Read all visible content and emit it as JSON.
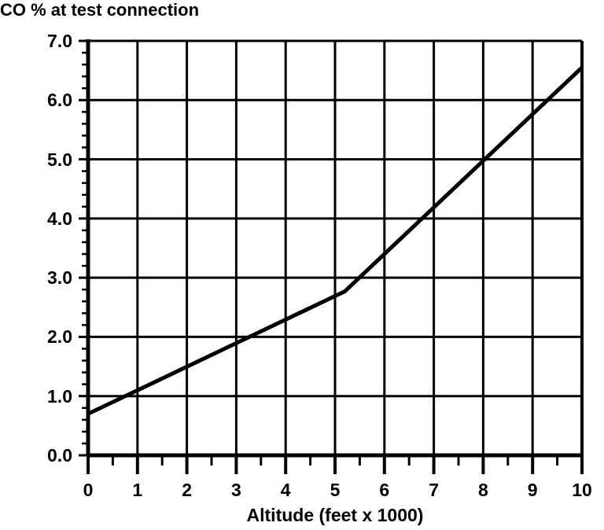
{
  "chart_data": {
    "type": "line",
    "title": "CO % at test connection",
    "xlabel": "Altitude (feet x 1000)",
    "ylabel": "",
    "xlim": [
      0,
      10
    ],
    "ylim": [
      0,
      7
    ],
    "x_tick_labels": [
      "0",
      "1",
      "2",
      "3",
      "4",
      "5",
      "6",
      "7",
      "8",
      "9",
      "10"
    ],
    "y_tick_labels": [
      "0.0",
      "1.0",
      "2.0",
      "3.0",
      "4.0",
      "5.0",
      "6.0",
      "7.0"
    ],
    "x_minor_tick_step": 0.5,
    "y_minor_tick_step": 0.2,
    "grid": true,
    "legend": false,
    "colors": {
      "line": "#000000",
      "grid": "#000000",
      "text": "#000000",
      "background": "#ffffff"
    },
    "series": [
      {
        "name": "CO %",
        "points": [
          [
            0,
            0.7
          ],
          [
            5.2,
            2.77
          ],
          [
            10,
            6.55
          ]
        ]
      }
    ],
    "readings_at_integer_altitudes": {
      "x": [
        0,
        1,
        2,
        3,
        4,
        5,
        6,
        7,
        8,
        9,
        10
      ],
      "y": [
        0.7,
        1.1,
        1.5,
        1.9,
        2.3,
        2.7,
        3.4,
        4.2,
        5.0,
        5.8,
        6.55
      ]
    }
  }
}
